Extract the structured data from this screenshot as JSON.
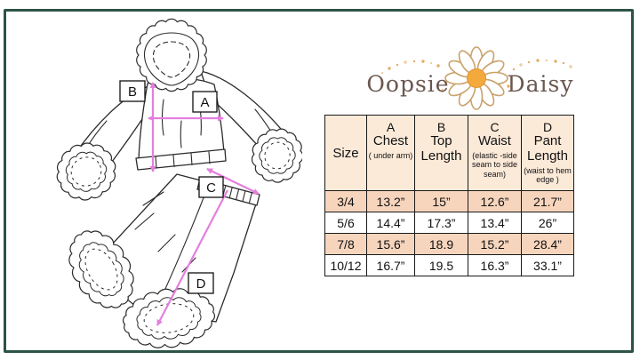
{
  "colors": {
    "frame_green": "#2b5446",
    "arrow_pink": "#e47fdc",
    "table_header_bg": "#fcead9",
    "table_row_alt_bg": "#f7d5bd",
    "table_border": "#1a1a1a",
    "logo_text": "#6b5750",
    "daisy_center": "#f4a93d",
    "petal_outline": "#c9a26b",
    "dot_gold": "#dfa558",
    "line_art": "#2b2b2b"
  },
  "logo": {
    "word1": "Oopsie",
    "word2": "Daisy"
  },
  "diagram": {
    "labels": [
      {
        "letter": "A"
      },
      {
        "letter": "B"
      },
      {
        "letter": "C"
      },
      {
        "letter": "D"
      }
    ]
  },
  "size_chart": {
    "header": [
      {
        "letter": "",
        "title": "Size",
        "subtitle": ""
      },
      {
        "letter": "A",
        "title": "Chest",
        "subtitle": "( under arm)"
      },
      {
        "letter": "B",
        "title": "Top Length",
        "subtitle": ""
      },
      {
        "letter": "C",
        "title": "Waist",
        "subtitle": "(elastic -side seam to side seam)"
      },
      {
        "letter": "D",
        "title": "Pant Length",
        "subtitle": "(waist to hem edge )"
      }
    ]
  },
  "chart_data": {
    "type": "table",
    "columns": [
      "Size",
      "A Chest ( under arm)",
      "B Top Length",
      "C Waist (elastic -side seam to side seam)",
      "D Pant Length (waist to hem edge )"
    ],
    "rows": [
      [
        "3/4",
        "13.2”",
        "15”",
        "12.6”",
        "21.7”"
      ],
      [
        "5/6",
        "14.4”",
        "17.3”",
        "13.4”",
        "26”"
      ],
      [
        "7/8",
        "15.6”",
        "18.9",
        "15.2”",
        "28.4”"
      ],
      [
        "10/12",
        "16.7”",
        "19.5",
        "16.3”",
        "33.1”"
      ]
    ]
  }
}
